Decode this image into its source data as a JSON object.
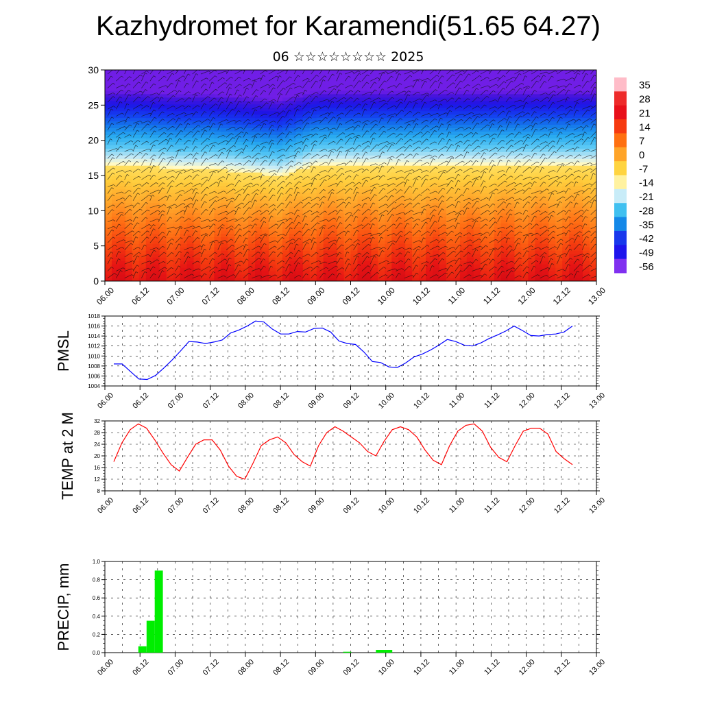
{
  "header": {
    "title": "Kazhydromet for Karamendi(51.65 64.27)",
    "subtitle": "06 ☆☆☆☆☆☆☆☆ 2025"
  },
  "time_labels": [
    "06.00",
    "06.12",
    "07.00",
    "07.12",
    "08.00",
    "08.12",
    "09.00",
    "09.12",
    "10.00",
    "10.12",
    "11.00",
    "11.12",
    "12.00",
    "12.12",
    "13.00"
  ],
  "colorbar": {
    "labels": [
      "35",
      "28",
      "21",
      "14",
      "7",
      "0",
      "-7",
      "-14",
      "-21",
      "-28",
      "-35",
      "-42",
      "-49",
      "-56"
    ],
    "colors": [
      "#ffbcc8",
      "#ee2a2a",
      "#e8101a",
      "#f63a10",
      "#ff7010",
      "#ffa428",
      "#ffd440",
      "#fff2a0",
      "#c8ecf8",
      "#40c0f0",
      "#1488e8",
      "#1838ec",
      "#1e14ec",
      "#8030f0"
    ]
  },
  "chart_data": [
    {
      "type": "heatmap",
      "name": "temperature-wind cross-section",
      "ylim": [
        0,
        30
      ],
      "yticks": [
        0,
        5,
        10,
        15,
        20,
        25,
        30
      ],
      "x": [
        "06.00",
        "06.12",
        "07.00",
        "07.12",
        "08.00",
        "08.12",
        "09.00",
        "09.12",
        "10.00",
        "10.12",
        "11.00",
        "11.12",
        "12.00",
        "12.12",
        "13.00"
      ],
      "value_range": [
        -56,
        35
      ],
      "freezing_level_approx": [
        16.5,
        16.5,
        16,
        16,
        15.5,
        15,
        16.5,
        16.5,
        16.5,
        16.5,
        16.5,
        16.5,
        16.5,
        16.5,
        16.5
      ],
      "colorscale": "rainbow (blue cold to red warm)"
    },
    {
      "type": "line",
      "ylabel": "PMSL",
      "ylim": [
        1004,
        1018
      ],
      "yticks": [
        1004,
        1006,
        1008,
        1010,
        1012,
        1014,
        1016,
        1018
      ],
      "series": [
        {
          "color": "#0000ff",
          "values": [
            1008.4,
            1008.4,
            1006.9,
            1005.4,
            1005.3,
            1006.1,
            1007.6,
            1009.2,
            1011.0,
            1012.9,
            1012.8,
            1012.5,
            1012.8,
            1013.2,
            1014.6,
            1015.2,
            1016.0,
            1017.0,
            1016.8,
            1015.4,
            1014.4,
            1014.4,
            1014.9,
            1014.8,
            1015.5,
            1015.6,
            1014.8,
            1013.0,
            1012.5,
            1012.3,
            1010.8,
            1008.9,
            1008.7,
            1007.8,
            1007.7,
            1008.6,
            1009.8,
            1010.4,
            1011.2,
            1012.2,
            1013.3,
            1012.9,
            1012.2,
            1012.0,
            1012.6,
            1013.5,
            1014.2,
            1015.0,
            1016.0,
            1015.1,
            1014.1,
            1014.0,
            1014.3,
            1014.4,
            1014.8,
            1016.0
          ]
        }
      ],
      "x_start": 0,
      "x_step_hours": 3
    },
    {
      "type": "line",
      "ylabel": "TEMP at 2 M",
      "ylim": [
        8,
        32
      ],
      "yticks": [
        8,
        12,
        16,
        20,
        24,
        28,
        32
      ],
      "series": [
        {
          "color": "#ff0000",
          "values": [
            18.0,
            24.5,
            29.0,
            31.0,
            29.5,
            25.5,
            21.0,
            17.0,
            14.8,
            19.5,
            24.0,
            25.5,
            25.5,
            22.0,
            16.5,
            13.0,
            12.0,
            17.5,
            23.5,
            25.5,
            26.5,
            24.5,
            20.5,
            18.0,
            16.5,
            23.5,
            28.0,
            30.0,
            28.5,
            26.5,
            24.5,
            21.5,
            20.0,
            25.0,
            29.0,
            30.0,
            29.0,
            26.5,
            22.0,
            18.5,
            17.0,
            23.5,
            28.5,
            30.5,
            31.0,
            28.5,
            23.0,
            19.5,
            18.0,
            23.5,
            28.5,
            29.5,
            29.5,
            27.5,
            21.5,
            19.0,
            17.0
          ]
        }
      ],
      "x_start": 0,
      "x_step_hours": 3
    },
    {
      "type": "bar",
      "ylabel": "PRECIP, mm",
      "ylim": [
        0,
        1.0
      ],
      "yticks": [
        0.0,
        0.2,
        0.4,
        0.6,
        0.8,
        1.0
      ],
      "ytick_labels": [
        "0.0",
        "0.2",
        "0.4",
        "0.6",
        "0.8",
        "1.0"
      ],
      "color": "#00ee00",
      "bars": [
        {
          "start_hour": 9,
          "end_hour": 12,
          "value": 0.07
        },
        {
          "start_hour": 12,
          "end_hour": 15,
          "value": 0.35
        },
        {
          "start_hour": 15,
          "end_hour": 18,
          "value": 0.9
        },
        {
          "start_hour": 84,
          "end_hour": 87,
          "value": 0.01
        },
        {
          "start_hour": 96,
          "end_hour": 102,
          "value": 0.03
        }
      ]
    }
  ]
}
